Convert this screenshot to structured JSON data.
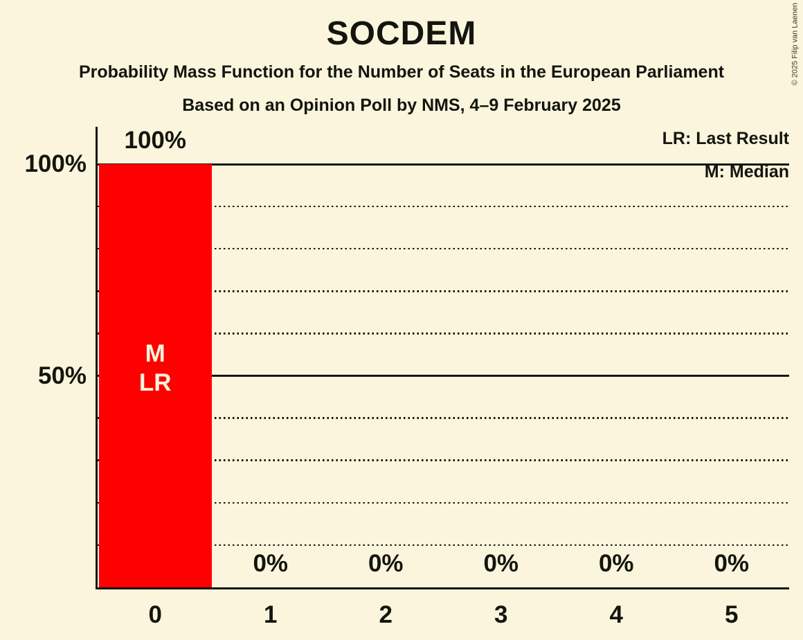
{
  "copyright": "© 2025 Filip van Laenen",
  "colors": {
    "background": "#FAF5DC",
    "bar": "#FF0000",
    "text": "#15150F",
    "bar_annotation_text": "#FAF5DC"
  },
  "chart_data": {
    "type": "bar",
    "title": "SOCDEM",
    "subtitle": "Probability Mass Function for the Number of Seats in the European Parliament",
    "source": "Based on an Opinion Poll by NMS, 4–9 February 2025",
    "legend_entries": [
      "LR: Last Result",
      "M: Median"
    ],
    "legend_position": "top-right",
    "categories": [
      "0",
      "1",
      "2",
      "3",
      "4",
      "5"
    ],
    "values": [
      100,
      0,
      0,
      0,
      0,
      0
    ],
    "value_labels": [
      "100%",
      "0%",
      "0%",
      "0%",
      "0%",
      "0%"
    ],
    "bar_annotations": [
      [
        "M",
        "LR"
      ],
      [],
      [],
      [],
      [],
      []
    ],
    "y_ticks": [
      {
        "value": 100,
        "label": "100%"
      },
      {
        "value": 50,
        "label": "50%"
      }
    ],
    "ylim": [
      0,
      100
    ],
    "gridlines": {
      "solid": [
        100,
        50
      ],
      "dotted": [
        90,
        80,
        70,
        60,
        40,
        30,
        20,
        10
      ]
    },
    "grid": true,
    "xlabel": "",
    "ylabel": ""
  }
}
